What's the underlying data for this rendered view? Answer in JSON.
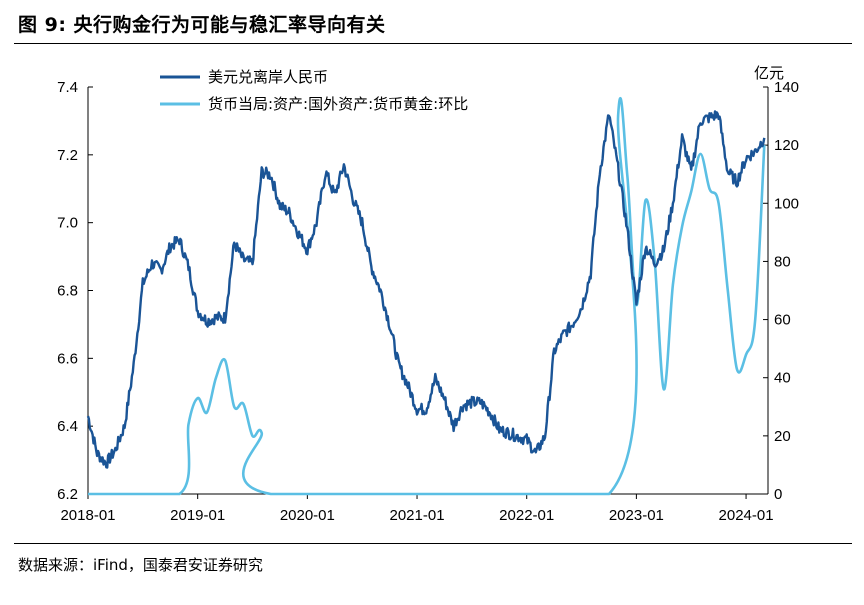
{
  "title": "图 9:  央行购金行为可能与稳汇率导向有关",
  "source": "数据来源：iFind，国泰君安证券研究",
  "colors": {
    "dark": "#1a5496",
    "light": "#5bbfe4",
    "axis": "#000000"
  },
  "chart_data": {
    "type": "line",
    "title": "图 9:  央行购金行为可能与稳汇率导向有关",
    "x_ticks": [
      "2018-01",
      "2019-01",
      "2020-01",
      "2021-01",
      "2022-01",
      "2023-01",
      "2024-01"
    ],
    "y_left": {
      "label": "",
      "lim": [
        6.2,
        7.4
      ],
      "ticks": [
        "6.2",
        "6.4",
        "6.6",
        "6.8",
        "7.0",
        "7.2",
        "7.4"
      ]
    },
    "y_right": {
      "label": "亿元",
      "lim": [
        0,
        140
      ],
      "ticks": [
        "0",
        "20",
        "40",
        "60",
        "80",
        "100",
        "120",
        "140"
      ]
    },
    "series": [
      {
        "name": "美元兑离岸人民币",
        "axis": "left",
        "points": [
          [
            "2018-01",
            6.43
          ],
          [
            "2018-02",
            6.32
          ],
          [
            "2018-03",
            6.29
          ],
          [
            "2018-04",
            6.33
          ],
          [
            "2018-05",
            6.4
          ],
          [
            "2018-06",
            6.58
          ],
          [
            "2018-07",
            6.82
          ],
          [
            "2018-08",
            6.88
          ],
          [
            "2018-09",
            6.86
          ],
          [
            "2018-10",
            6.93
          ],
          [
            "2018-11",
            6.95
          ],
          [
            "2018-12",
            6.87
          ],
          [
            "2019-01",
            6.74
          ],
          [
            "2019-02",
            6.71
          ],
          [
            "2019-03",
            6.72
          ],
          [
            "2019-04",
            6.72
          ],
          [
            "2019-05",
            6.94
          ],
          [
            "2019-06",
            6.89
          ],
          [
            "2019-07",
            6.88
          ],
          [
            "2019-08",
            7.15
          ],
          [
            "2019-09",
            7.14
          ],
          [
            "2019-10",
            7.05
          ],
          [
            "2019-11",
            7.03
          ],
          [
            "2019-12",
            6.97
          ],
          [
            "2020-01",
            6.92
          ],
          [
            "2020-02",
            7.0
          ],
          [
            "2020-03",
            7.15
          ],
          [
            "2020-04",
            7.08
          ],
          [
            "2020-05",
            7.17
          ],
          [
            "2020-06",
            7.07
          ],
          [
            "2020-07",
            7.0
          ],
          [
            "2020-08",
            6.87
          ],
          [
            "2020-09",
            6.8
          ],
          [
            "2020-10",
            6.7
          ],
          [
            "2020-11",
            6.58
          ],
          [
            "2020-12",
            6.52
          ],
          [
            "2021-01",
            6.45
          ],
          [
            "2021-02",
            6.45
          ],
          [
            "2021-03",
            6.54
          ],
          [
            "2021-04",
            6.48
          ],
          [
            "2021-05",
            6.4
          ],
          [
            "2021-06",
            6.46
          ],
          [
            "2021-07",
            6.47
          ],
          [
            "2021-08",
            6.47
          ],
          [
            "2021-09",
            6.44
          ],
          [
            "2021-10",
            6.39
          ],
          [
            "2021-11",
            6.38
          ],
          [
            "2021-12",
            6.37
          ],
          [
            "2022-01",
            6.36
          ],
          [
            "2022-02",
            6.32
          ],
          [
            "2022-03",
            6.37
          ],
          [
            "2022-04",
            6.62
          ],
          [
            "2022-05",
            6.67
          ],
          [
            "2022-06",
            6.7
          ],
          [
            "2022-07",
            6.75
          ],
          [
            "2022-08",
            6.85
          ],
          [
            "2022-09",
            7.15
          ],
          [
            "2022-10",
            7.32
          ],
          [
            "2022-11",
            7.16
          ],
          [
            "2022-12",
            6.98
          ],
          [
            "2023-01",
            6.76
          ],
          [
            "2023-02",
            6.93
          ],
          [
            "2023-03",
            6.88
          ],
          [
            "2023-04",
            6.92
          ],
          [
            "2023-05",
            7.06
          ],
          [
            "2023-06",
            7.25
          ],
          [
            "2023-07",
            7.15
          ],
          [
            "2023-08",
            7.3
          ],
          [
            "2023-09",
            7.31
          ],
          [
            "2023-10",
            7.32
          ],
          [
            "2023-11",
            7.15
          ],
          [
            "2023-12",
            7.12
          ],
          [
            "2024-01",
            7.19
          ],
          [
            "2024-02",
            7.21
          ],
          [
            "2024-03",
            7.25
          ]
        ]
      },
      {
        "name": "货币当局:资产:国外资产:货币黄金:环比",
        "axis": "right",
        "points": [
          [
            "2018-01",
            0
          ],
          [
            "2018-11",
            0
          ],
          [
            "2018-12",
            24
          ],
          [
            "2019-01",
            33
          ],
          [
            "2019-02",
            28
          ],
          [
            "2019-03",
            40
          ],
          [
            "2019-04",
            46
          ],
          [
            "2019-05",
            30
          ],
          [
            "2019-06",
            31
          ],
          [
            "2019-07",
            20
          ],
          [
            "2019-08",
            21
          ],
          [
            "2019-09",
            0
          ],
          [
            "2022-10",
            0
          ],
          [
            "2022-11",
            130
          ],
          [
            "2022-12",
            110
          ],
          [
            "2023-01",
            65
          ],
          [
            "2023-02",
            101
          ],
          [
            "2023-03",
            80
          ],
          [
            "2023-04",
            36
          ],
          [
            "2023-05",
            72
          ],
          [
            "2023-06",
            92
          ],
          [
            "2023-07",
            104
          ],
          [
            "2023-08",
            117
          ],
          [
            "2023-09",
            105
          ],
          [
            "2023-10",
            100
          ],
          [
            "2023-11",
            70
          ],
          [
            "2023-12",
            43
          ],
          [
            "2024-01",
            48
          ],
          [
            "2024-02",
            60
          ],
          [
            "2024-03",
            120
          ]
        ]
      }
    ],
    "legend": "top-left"
  }
}
